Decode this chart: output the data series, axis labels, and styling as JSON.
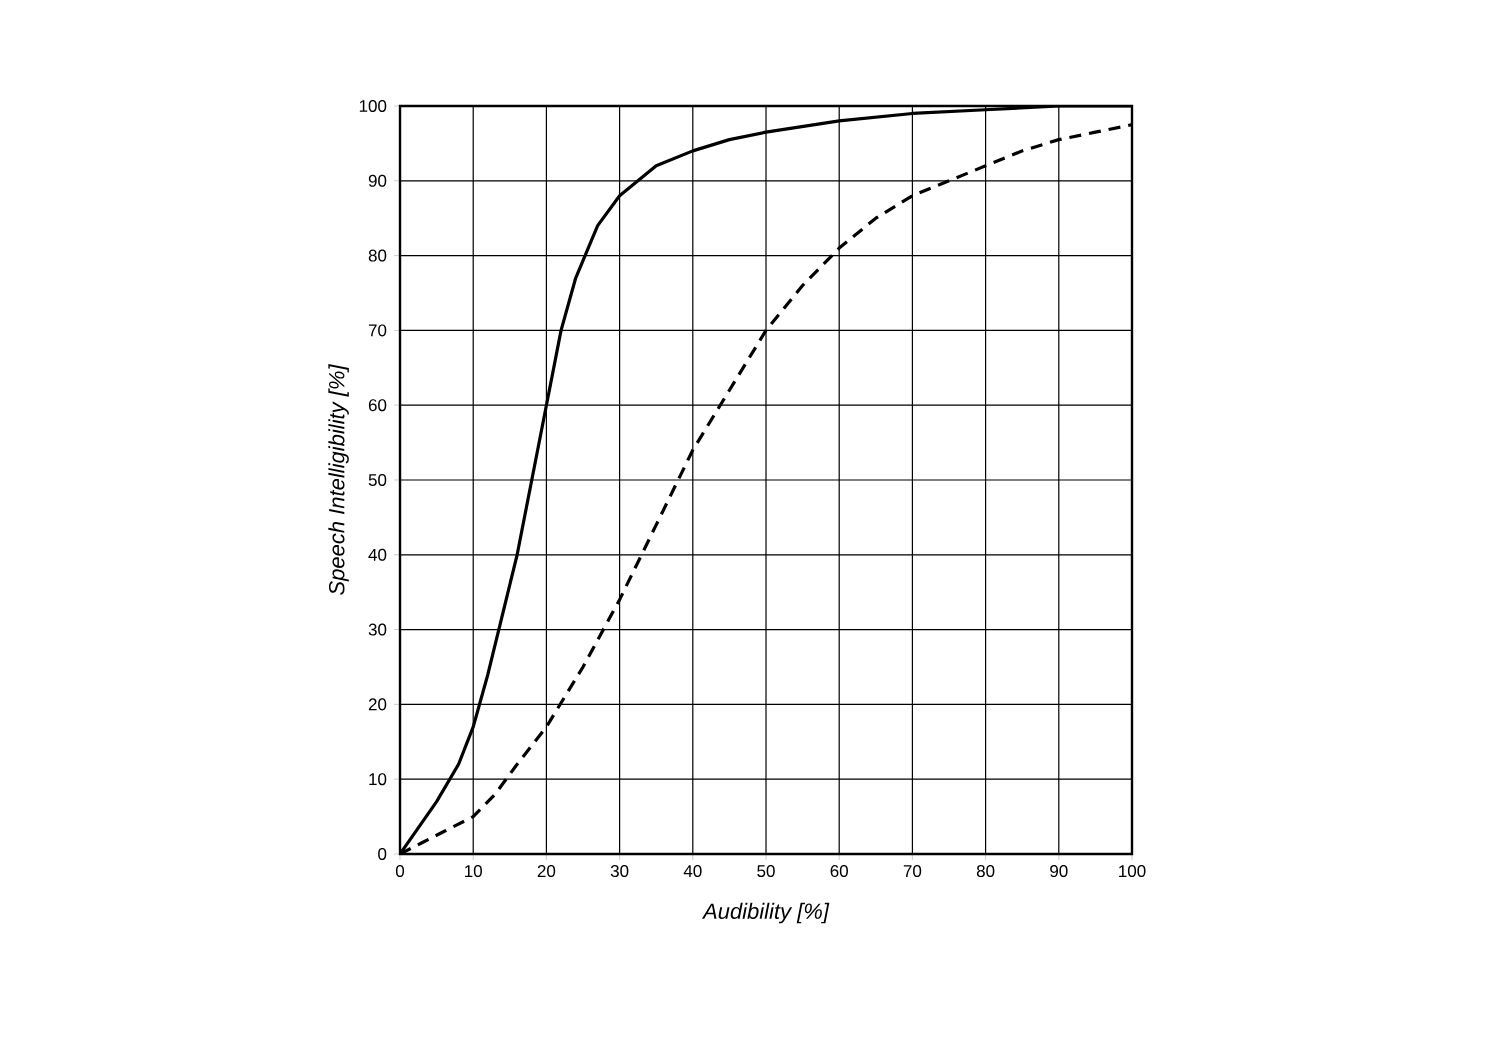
{
  "chart_data": {
    "type": "line",
    "xlabel": "Audibility [%]",
    "ylabel": "Speech Intelligibility [%]",
    "xlim": [
      0,
      100
    ],
    "ylim": [
      0,
      100
    ],
    "xticks": [
      0,
      10,
      20,
      30,
      40,
      50,
      60,
      70,
      80,
      90,
      100
    ],
    "yticks": [
      0,
      10,
      20,
      30,
      40,
      50,
      60,
      70,
      80,
      90,
      100
    ],
    "grid": true,
    "marker": "none",
    "series": [
      {
        "color": "#000000",
        "line_style": "solid",
        "x": [
          0,
          5,
          8,
          10,
          12,
          14,
          16,
          18,
          20,
          22,
          24,
          27,
          30,
          35,
          40,
          45,
          50,
          60,
          70,
          80,
          90,
          100
        ],
        "values": [
          0,
          7,
          12,
          17,
          24,
          32,
          40,
          50,
          60,
          70,
          77,
          84,
          88,
          92,
          94,
          95.5,
          96.5,
          98,
          99,
          99.5,
          100,
          100
        ]
      },
      {
        "color": "#000000",
        "line_style": "dashed",
        "x": [
          0,
          3,
          6,
          10,
          13,
          16,
          20,
          25,
          30,
          35,
          40,
          45,
          50,
          55,
          60,
          65,
          70,
          75,
          80,
          85,
          90,
          95,
          100
        ],
        "values": [
          0,
          1.5,
          3,
          5,
          8,
          12,
          17,
          25,
          34,
          44,
          54,
          62,
          70,
          76,
          81,
          85,
          88,
          90,
          92,
          94,
          95.5,
          96.5,
          97.5
        ]
      }
    ]
  }
}
